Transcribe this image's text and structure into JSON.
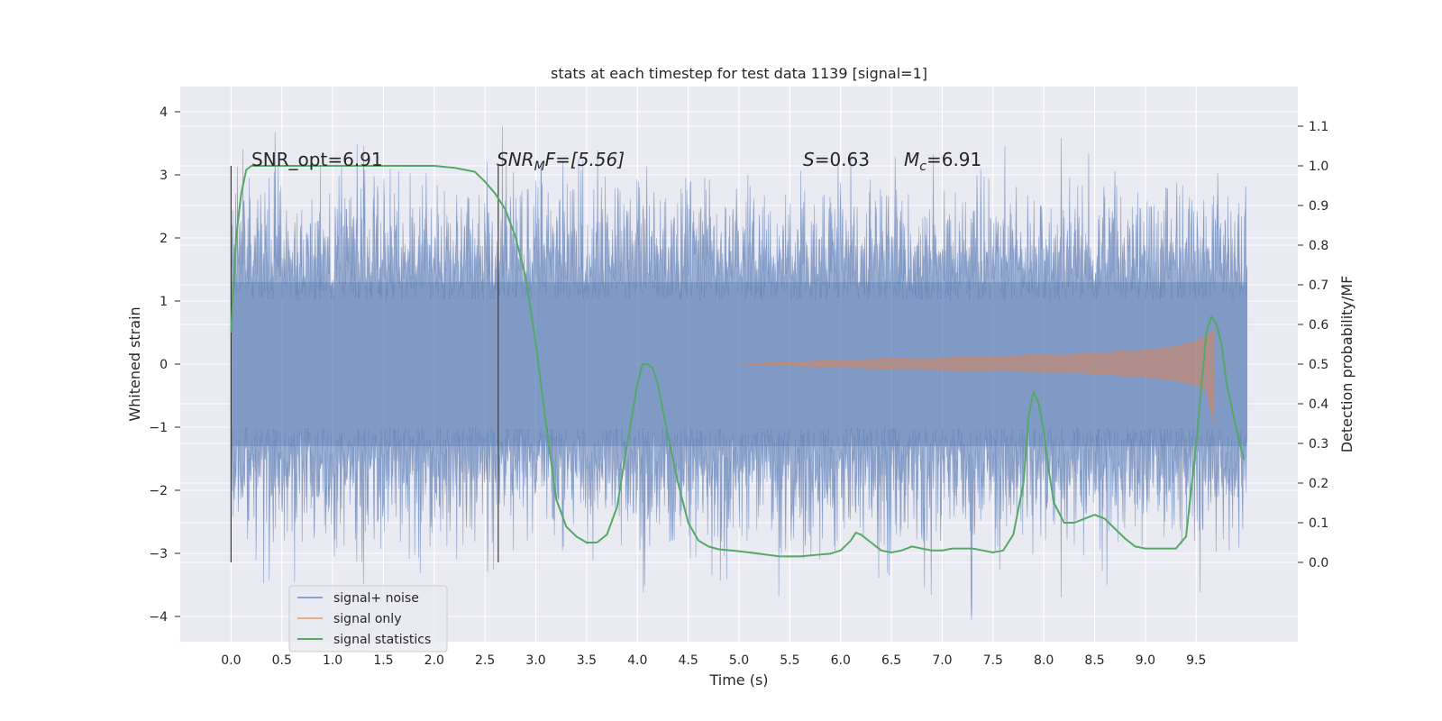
{
  "chart_data": {
    "type": "line",
    "title": "stats at each timestep for test data 1139 [signal=1]",
    "xlabel": "Time (s)",
    "ylabel": "Whitened strain",
    "ylabel_right": "Detection probability/MF",
    "xlim": [
      -0.5,
      10.5
    ],
    "ylim": [
      -4.4,
      4.4
    ],
    "ylim_right": [
      -0.2,
      1.2
    ],
    "x_ticks": [
      "0.0",
      "0.5",
      "1.0",
      "1.5",
      "2.0",
      "2.5",
      "3.0",
      "3.5",
      "4.0",
      "4.5",
      "5.0",
      "5.5",
      "6.0",
      "6.5",
      "7.0",
      "7.5",
      "8.0",
      "8.5",
      "9.0",
      "9.5"
    ],
    "y_ticks": [
      "−4",
      "−3",
      "−2",
      "−1",
      "0",
      "1",
      "2",
      "3",
      "4"
    ],
    "y_ticks_right": [
      "0.0",
      "0.1",
      "0.2",
      "0.3",
      "0.4",
      "0.5",
      "0.6",
      "0.7",
      "0.8",
      "0.9",
      "1.0",
      "1.1"
    ],
    "grid": true,
    "legend_position": "bottom-left",
    "annotations": {
      "snr_opt": "SNR_opt=6.91",
      "snr_mf_var": "SNR",
      "snr_mf_sub": "M",
      "snr_mf_rest": "F=[5.56]",
      "s_var": "S",
      "s_rest": "=0.63",
      "mc_var": "M",
      "mc_sub": "c",
      "mc_rest": "=6.91"
    },
    "vlines": [
      0.0,
      2.63
    ],
    "series": [
      {
        "name": "signal+ noise",
        "color": "#4c72b0",
        "axis": "left",
        "description_range": [
          0.0,
          10.0
        ]
      },
      {
        "name": "signal only",
        "color": "#dd8452",
        "axis": "left",
        "envelope": {
          "x": [
            5.0,
            6.0,
            7.0,
            8.0,
            8.5,
            9.0,
            9.3,
            9.5,
            9.6,
            9.68
          ],
          "upper": [
            0.0,
            0.06,
            0.1,
            0.14,
            0.17,
            0.22,
            0.28,
            0.36,
            0.45,
            0.55
          ],
          "lower": [
            0.0,
            -0.05,
            -0.09,
            -0.12,
            -0.15,
            -0.2,
            -0.26,
            -0.33,
            -0.42,
            -0.95
          ]
        }
      },
      {
        "name": "signal statistics",
        "color": "#55a868",
        "axis": "right",
        "x": [
          0.0,
          0.05,
          0.1,
          0.15,
          0.2,
          0.3,
          0.5,
          1.0,
          1.5,
          2.0,
          2.2,
          2.4,
          2.5,
          2.6,
          2.7,
          2.8,
          2.9,
          3.0,
          3.1,
          3.2,
          3.3,
          3.4,
          3.5,
          3.6,
          3.7,
          3.8,
          3.9,
          4.0,
          4.05,
          4.1,
          4.15,
          4.2,
          4.3,
          4.4,
          4.5,
          4.6,
          4.7,
          4.8,
          5.0,
          5.2,
          5.4,
          5.6,
          5.8,
          5.9,
          6.0,
          6.1,
          6.15,
          6.2,
          6.3,
          6.4,
          6.5,
          6.6,
          6.7,
          6.8,
          6.9,
          7.0,
          7.1,
          7.2,
          7.3,
          7.4,
          7.5,
          7.6,
          7.7,
          7.8,
          7.85,
          7.9,
          7.95,
          8.0,
          8.05,
          8.1,
          8.2,
          8.3,
          8.4,
          8.5,
          8.6,
          8.7,
          8.8,
          8.9,
          9.0,
          9.1,
          9.2,
          9.3,
          9.4,
          9.5,
          9.6,
          9.65,
          9.7,
          9.75,
          9.8,
          9.9,
          9.97
        ],
        "values": [
          0.58,
          0.82,
          0.93,
          0.99,
          1.0,
          1.0,
          1.0,
          1.0,
          1.0,
          1.0,
          0.995,
          0.985,
          0.96,
          0.93,
          0.89,
          0.82,
          0.72,
          0.55,
          0.35,
          0.16,
          0.09,
          0.065,
          0.05,
          0.05,
          0.07,
          0.14,
          0.3,
          0.45,
          0.5,
          0.5,
          0.49,
          0.45,
          0.32,
          0.2,
          0.1,
          0.055,
          0.04,
          0.033,
          0.028,
          0.022,
          0.015,
          0.015,
          0.02,
          0.022,
          0.03,
          0.055,
          0.075,
          0.07,
          0.05,
          0.03,
          0.025,
          0.03,
          0.04,
          0.035,
          0.03,
          0.03,
          0.035,
          0.035,
          0.035,
          0.03,
          0.025,
          0.03,
          0.07,
          0.2,
          0.37,
          0.43,
          0.4,
          0.33,
          0.23,
          0.15,
          0.1,
          0.1,
          0.11,
          0.12,
          0.11,
          0.085,
          0.06,
          0.04,
          0.035,
          0.035,
          0.035,
          0.035,
          0.065,
          0.3,
          0.58,
          0.62,
          0.6,
          0.55,
          0.45,
          0.33,
          0.26
        ]
      }
    ]
  }
}
